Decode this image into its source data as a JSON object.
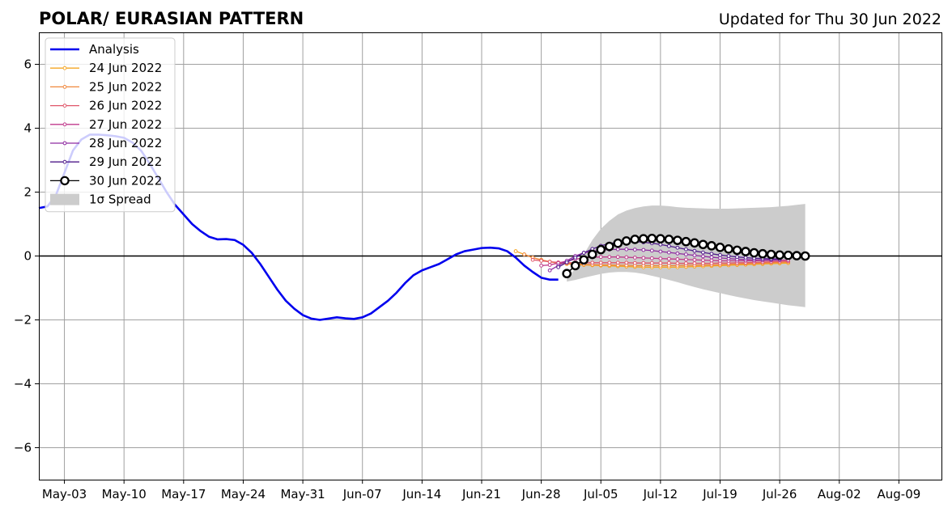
{
  "chart_data": {
    "type": "line",
    "title": "POLAR/ EURASIAN  PATTERN",
    "subtitle": "Updated for Thu 30 Jun 2022",
    "xlabel": "",
    "ylabel": "",
    "xlim": [
      "2022-04-30",
      "2022-08-14"
    ],
    "ylim": [
      -7,
      7
    ],
    "x_ticks": [
      {
        "date": "2022-05-03",
        "label": "May-03"
      },
      {
        "date": "2022-05-10",
        "label": "May-10"
      },
      {
        "date": "2022-05-17",
        "label": "May-17"
      },
      {
        "date": "2022-05-24",
        "label": "May-24"
      },
      {
        "date": "2022-05-31",
        "label": "May-31"
      },
      {
        "date": "2022-06-07",
        "label": "Jun-07"
      },
      {
        "date": "2022-06-14",
        "label": "Jun-14"
      },
      {
        "date": "2022-06-21",
        "label": "Jun-21"
      },
      {
        "date": "2022-06-28",
        "label": "Jun-28"
      },
      {
        "date": "2022-07-05",
        "label": "Jul-05"
      },
      {
        "date": "2022-07-12",
        "label": "Jul-12"
      },
      {
        "date": "2022-07-19",
        "label": "Jul-19"
      },
      {
        "date": "2022-07-26",
        "label": "Jul-26"
      },
      {
        "date": "2022-08-02",
        "label": "Aug-02"
      },
      {
        "date": "2022-08-09",
        "label": "Aug-09"
      }
    ],
    "y_ticks": [
      {
        "value": 6,
        "label": "6"
      },
      {
        "value": 4,
        "label": "4"
      },
      {
        "value": 2,
        "label": "2"
      },
      {
        "value": 0,
        "label": "0"
      },
      {
        "value": -2,
        "label": "−2"
      },
      {
        "value": -4,
        "label": "−4"
      },
      {
        "value": -6,
        "label": "−6"
      }
    ],
    "grid": true,
    "zero_line": true,
    "legend_position": "top-left",
    "legend_spread_label": "1σ Spread",
    "spread_color": "#cccccc",
    "analysis": {
      "name": "Analysis",
      "color": "#0000ee",
      "start": "2022-04-30",
      "values": [
        1.5,
        1.55,
        1.9,
        2.6,
        3.3,
        3.65,
        3.8,
        3.8,
        3.78,
        3.75,
        3.7,
        3.55,
        3.3,
        2.9,
        2.45,
        2.0,
        1.6,
        1.3,
        1.0,
        0.78,
        0.6,
        0.52,
        0.53,
        0.5,
        0.35,
        0.1,
        -0.25,
        -0.65,
        -1.05,
        -1.4,
        -1.65,
        -1.85,
        -1.96,
        -2.0,
        -1.96,
        -1.92,
        -1.95,
        -1.97,
        -1.92,
        -1.8,
        -1.6,
        -1.4,
        -1.15,
        -0.85,
        -0.6,
        -0.45,
        -0.35,
        -0.25,
        -0.1,
        0.05,
        0.15,
        0.2,
        0.25,
        0.26,
        0.24,
        0.15,
        -0.05,
        -0.3,
        -0.5,
        -0.68,
        -0.74,
        -0.74
      ]
    },
    "spread": {
      "start": "2022-07-01",
      "upper": [
        -0.7,
        -0.4,
        0.05,
        0.5,
        0.85,
        1.1,
        1.3,
        1.42,
        1.5,
        1.55,
        1.58,
        1.58,
        1.56,
        1.53,
        1.51,
        1.5,
        1.49,
        1.48,
        1.48,
        1.48,
        1.49,
        1.5,
        1.51,
        1.52,
        1.53,
        1.55,
        1.57,
        1.6,
        1.63
      ],
      "lower": [
        -0.8,
        -0.75,
        -0.68,
        -0.62,
        -0.56,
        -0.52,
        -0.5,
        -0.5,
        -0.52,
        -0.56,
        -0.62,
        -0.68,
        -0.75,
        -0.82,
        -0.9,
        -0.97,
        -1.04,
        -1.1,
        -1.16,
        -1.22,
        -1.28,
        -1.33,
        -1.38,
        -1.42,
        -1.46,
        -1.5,
        -1.54,
        -1.57,
        -1.6
      ]
    },
    "series": [
      {
        "name": "24 Jun 2022",
        "color": "#f5a623",
        "start": "2022-06-25",
        "values": [
          0.15,
          0.05,
          -0.05,
          -0.12,
          -0.18,
          -0.22,
          -0.25,
          -0.27,
          -0.28,
          -0.29,
          -0.3,
          -0.31,
          -0.32,
          -0.33,
          -0.34,
          -0.35,
          -0.35,
          -0.35,
          -0.35,
          -0.35,
          -0.34,
          -0.33,
          -0.32,
          -0.31,
          -0.3,
          -0.29,
          -0.28,
          -0.27,
          -0.26,
          -0.25,
          -0.24,
          -0.23,
          -0.22
        ]
      },
      {
        "name": "25 Jun 2022",
        "color": "#f0873c",
        "start": "2022-06-26",
        "values": [
          0.05,
          -0.05,
          -0.12,
          -0.18,
          -0.22,
          -0.24,
          -0.25,
          -0.26,
          -0.27,
          -0.28,
          -0.28,
          -0.29,
          -0.29,
          -0.3,
          -0.3,
          -0.3,
          -0.3,
          -0.3,
          -0.3,
          -0.29,
          -0.29,
          -0.28,
          -0.28,
          -0.27,
          -0.26,
          -0.25,
          -0.24,
          -0.23,
          -0.22,
          -0.21,
          -0.2,
          -0.19
        ]
      },
      {
        "name": "26 Jun 2022",
        "color": "#e0566a",
        "start": "2022-06-27",
        "values": [
          -0.12,
          -0.15,
          -0.18,
          -0.2,
          -0.21,
          -0.21,
          -0.21,
          -0.21,
          -0.21,
          -0.21,
          -0.21,
          -0.21,
          -0.22,
          -0.22,
          -0.22,
          -0.22,
          -0.22,
          -0.23,
          -0.23,
          -0.23,
          -0.23,
          -0.23,
          -0.22,
          -0.22,
          -0.21,
          -0.21,
          -0.2,
          -0.19,
          -0.18,
          -0.17,
          -0.16
        ]
      },
      {
        "name": "27 Jun 2022",
        "color": "#c03a8c",
        "start": "2022-06-28",
        "values": [
          -0.3,
          -0.28,
          -0.22,
          -0.16,
          -0.1,
          -0.06,
          -0.04,
          -0.03,
          -0.03,
          -0.03,
          -0.04,
          -0.05,
          -0.06,
          -0.07,
          -0.08,
          -0.09,
          -0.1,
          -0.11,
          -0.12,
          -0.13,
          -0.14,
          -0.15,
          -0.15,
          -0.15,
          -0.15,
          -0.15,
          -0.14,
          -0.14,
          -0.13,
          -0.13
        ]
      },
      {
        "name": "28 Jun 2022",
        "color": "#8e2aa0",
        "start": "2022-06-29",
        "values": [
          -0.45,
          -0.3,
          -0.15,
          0.0,
          0.1,
          0.15,
          0.18,
          0.2,
          0.21,
          0.21,
          0.2,
          0.19,
          0.17,
          0.14,
          0.11,
          0.08,
          0.05,
          0.02,
          -0.01,
          -0.04,
          -0.06,
          -0.08,
          -0.1,
          -0.11,
          -0.12,
          -0.12,
          -0.12,
          -0.12
        ]
      },
      {
        "name": "29 Jun 2022",
        "color": "#4e1a8a",
        "start": "2022-06-30",
        "values": [
          -0.35,
          -0.2,
          -0.05,
          0.1,
          0.22,
          0.32,
          0.39,
          0.43,
          0.45,
          0.45,
          0.43,
          0.4,
          0.36,
          0.31,
          0.26,
          0.21,
          0.16,
          0.11,
          0.07,
          0.03,
          0.0,
          -0.03,
          -0.05,
          -0.07,
          -0.08,
          -0.09,
          -0.09
        ]
      },
      {
        "name": "30 Jun 2022",
        "color": "#000000",
        "start": "2022-07-01",
        "hollow_markers": true,
        "values": [
          -0.55,
          -0.3,
          -0.12,
          0.05,
          0.2,
          0.3,
          0.4,
          0.47,
          0.52,
          0.54,
          0.55,
          0.54,
          0.52,
          0.49,
          0.45,
          0.41,
          0.36,
          0.32,
          0.27,
          0.22,
          0.18,
          0.14,
          0.1,
          0.07,
          0.05,
          0.03,
          0.02,
          0.01,
          0.0
        ]
      }
    ]
  }
}
